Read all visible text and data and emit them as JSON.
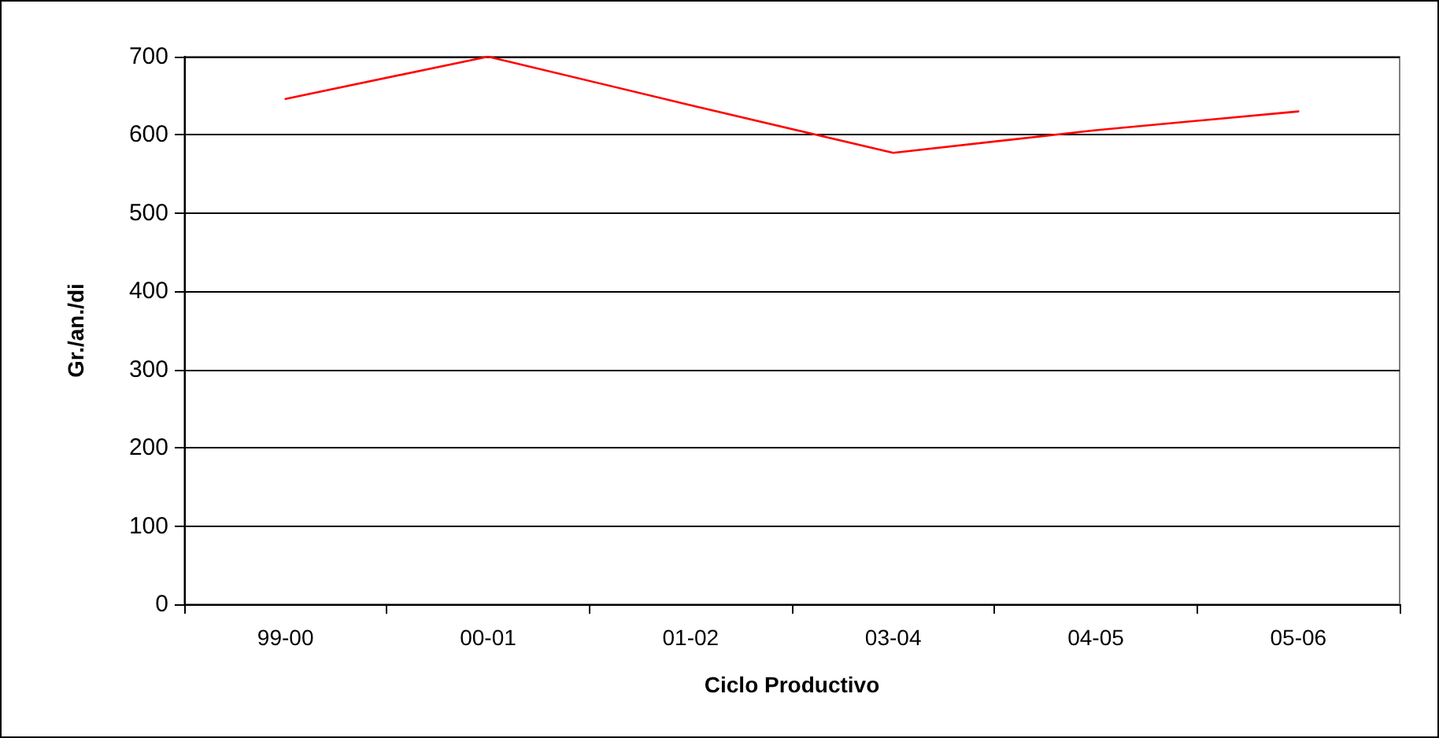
{
  "chart_data": {
    "type": "line",
    "xlabel": "Ciclo Productivo",
    "ylabel": "Gr./an./di",
    "categories": [
      "99-00",
      "00-01",
      "01-02",
      "03-04",
      "04-05",
      "05-06"
    ],
    "series": [
      {
        "color": "#ff0000",
        "values": [
          646,
          700,
          638,
          577,
          606,
          630
        ]
      }
    ],
    "ylim": [
      0,
      700
    ],
    "yticks": [
      0,
      100,
      200,
      300,
      400,
      500,
      600,
      700
    ],
    "grid": "y",
    "marker": "none",
    "line_style": "solid"
  }
}
